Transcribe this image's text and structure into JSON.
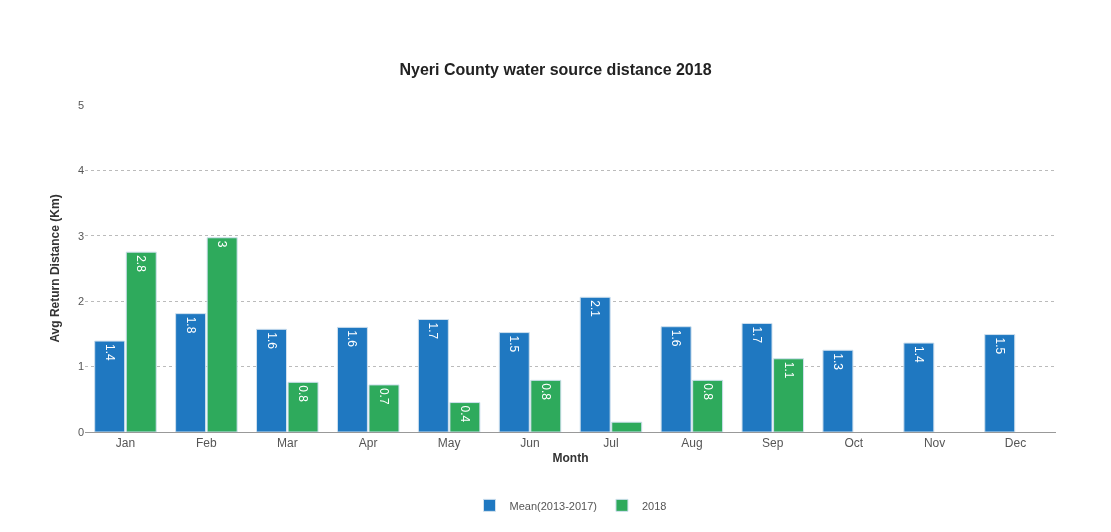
{
  "chart_data": {
    "type": "bar",
    "title": "Nyeri County water source distance 2018",
    "xlabel": "Month",
    "ylabel": "Avg Return Distance (Km)",
    "categories": [
      "Jan",
      "Feb",
      "Mar",
      "Apr",
      "May",
      "Jun",
      "Jul",
      "Aug",
      "Sep",
      "Oct",
      "Nov",
      "Dec"
    ],
    "series": [
      {
        "name": "Mean(2013-2017)",
        "color": "#1f78c1",
        "values": [
          1.39,
          1.81,
          1.57,
          1.6,
          1.72,
          1.52,
          2.06,
          1.61,
          1.66,
          1.25,
          1.36,
          1.49
        ],
        "value_labels": [
          "1.4",
          "1.8",
          "1.6",
          "1.6",
          "1.7",
          "1.5",
          "2.1",
          "1.6",
          "1.7",
          "1.3",
          "1.4",
          "1.5"
        ]
      },
      {
        "name": "2018",
        "color": "#2eaa5c",
        "values": [
          2.75,
          2.97,
          0.76,
          0.72,
          0.45,
          0.79,
          0.15,
          0.79,
          1.12,
          null,
          null,
          null
        ],
        "value_labels": [
          "2.8",
          "3",
          "0.8",
          "0.7",
          "0.4",
          "0.8",
          null,
          "0.8",
          "1.1",
          null,
          null,
          null
        ]
      }
    ],
    "ylim": [
      0,
      5
    ],
    "yticks": [
      0,
      1,
      2,
      3,
      4,
      5
    ],
    "grid": "y",
    "legend": "bottom"
  }
}
